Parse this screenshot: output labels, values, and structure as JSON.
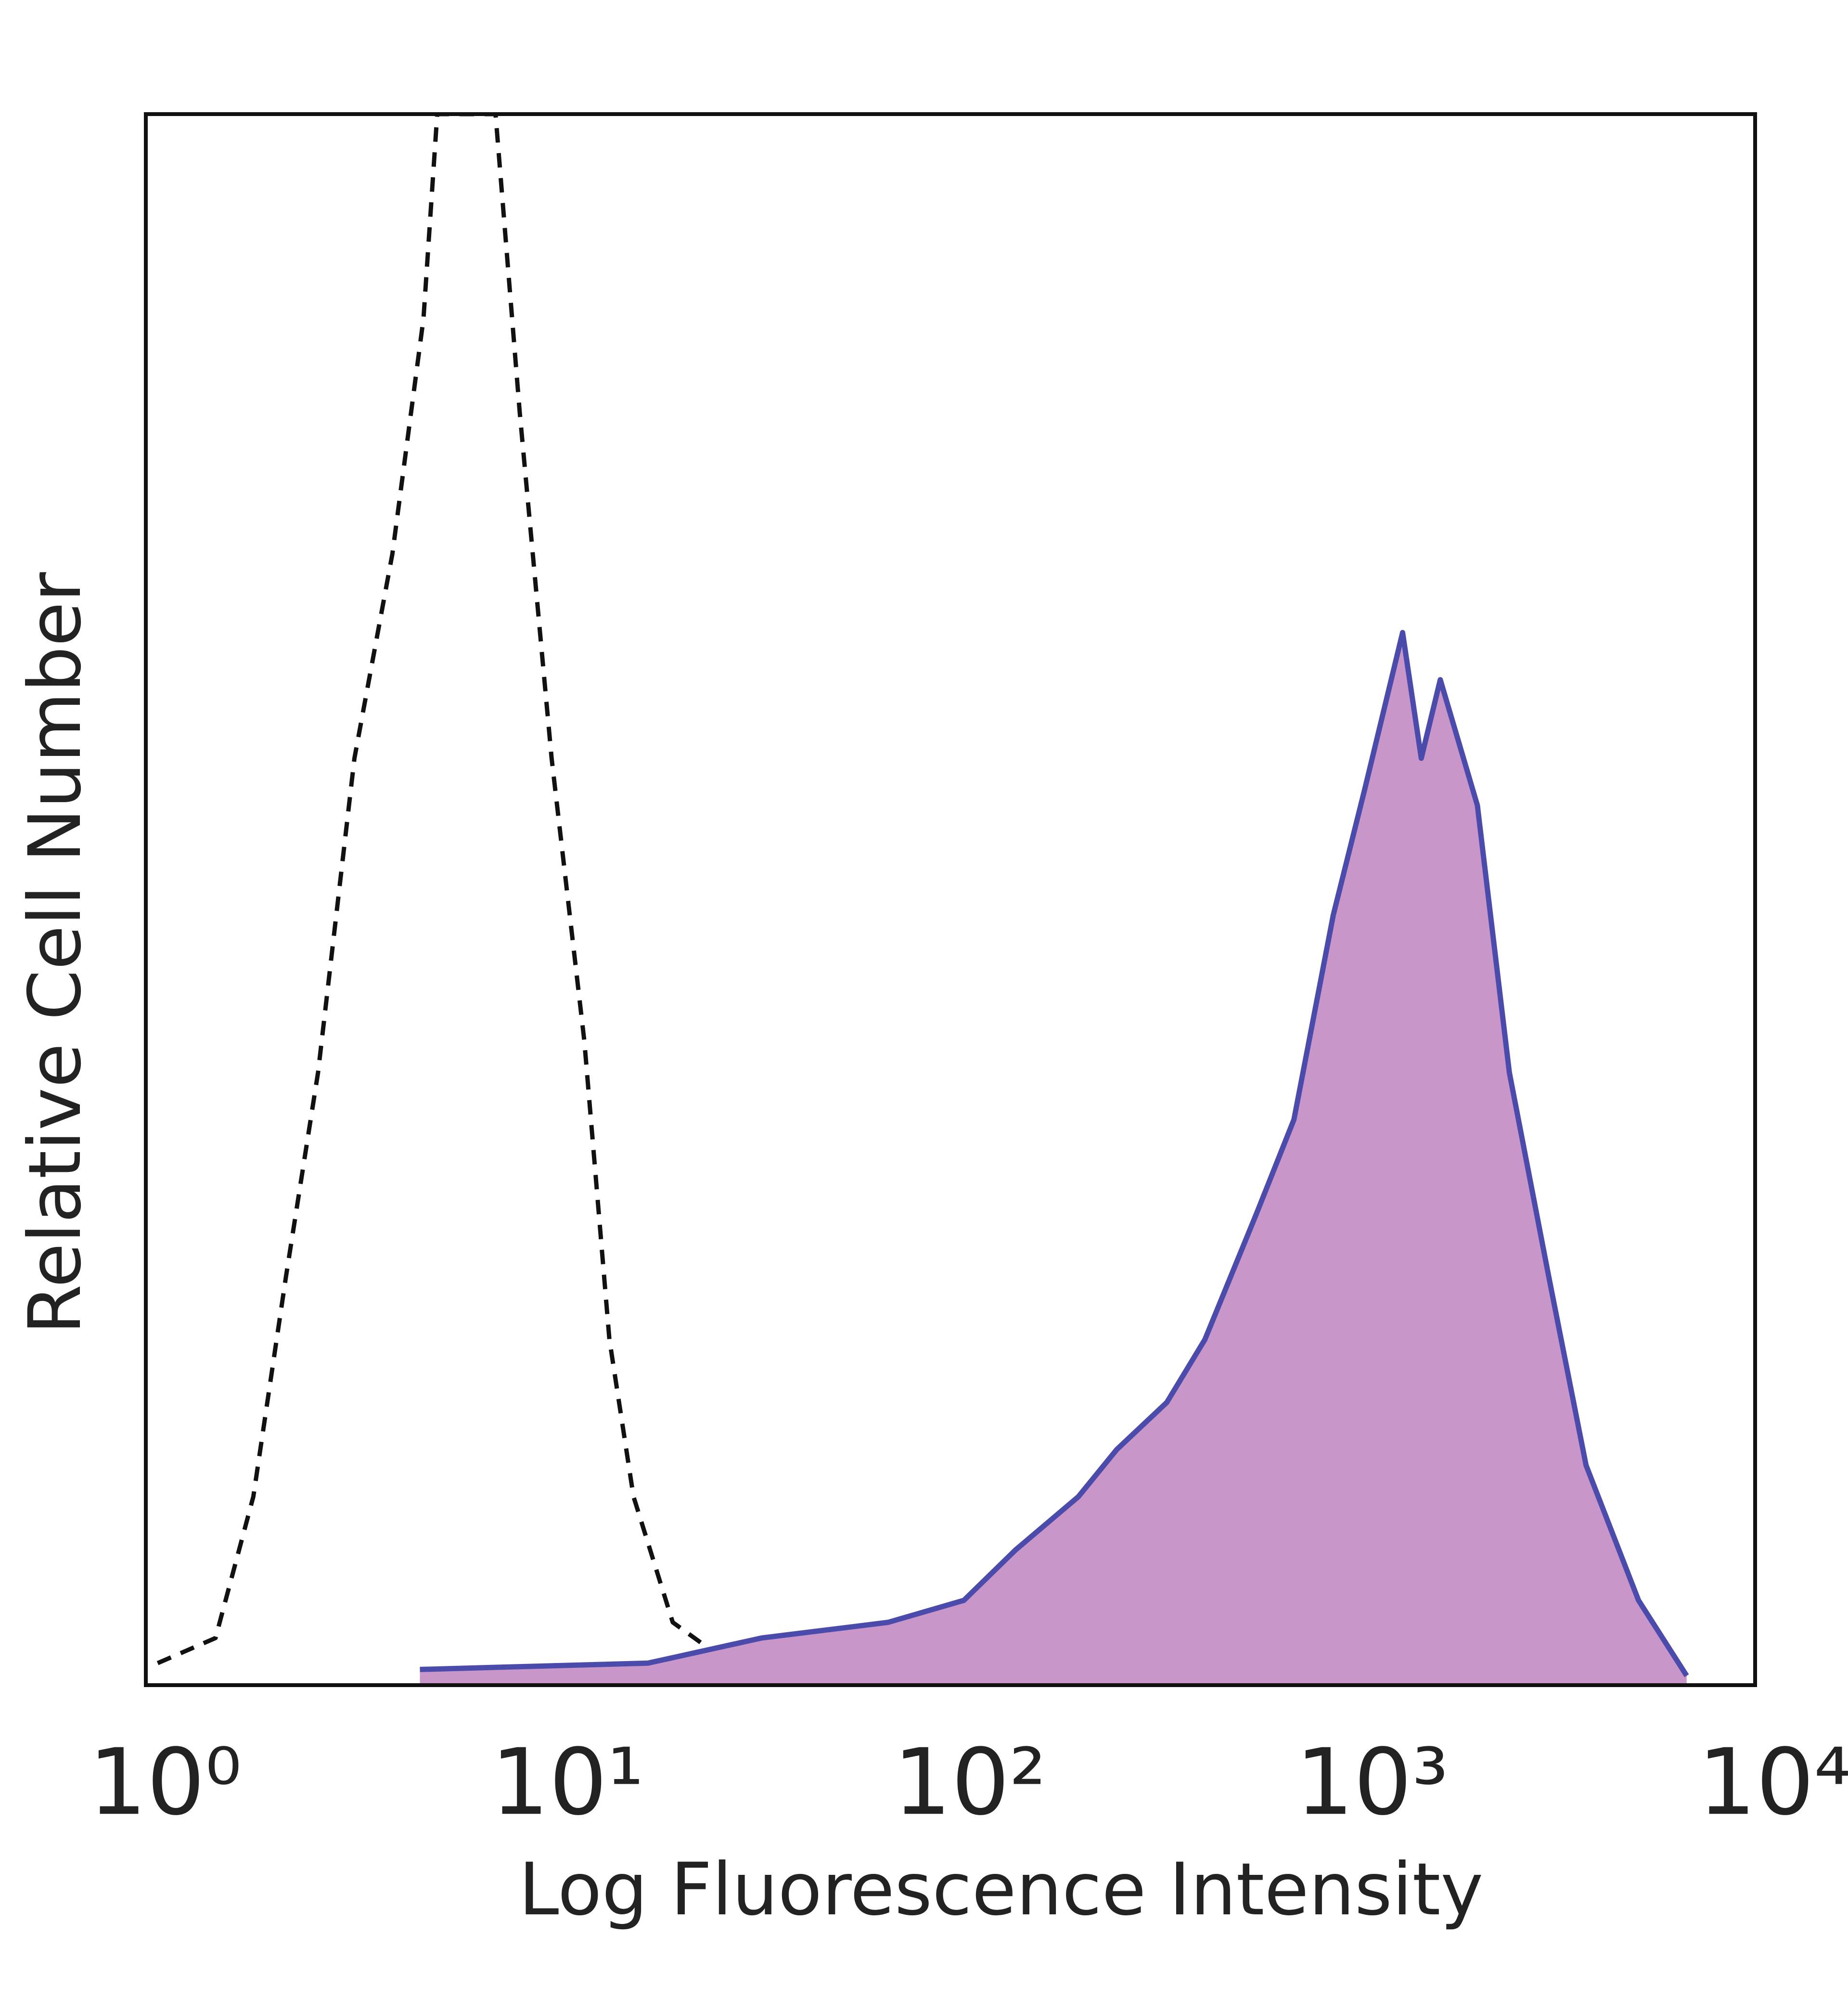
{
  "chart_data": {
    "type": "histogram-overlay",
    "x_label": "Log Fluorescence Intensity",
    "y_label": "Relative Cell Number",
    "xlim": [
      1,
      10000
    ],
    "xlog": true,
    "xticks": [
      {
        "value": 1,
        "label": "10⁰"
      },
      {
        "value": 10,
        "label": "10¹"
      },
      {
        "value": 100,
        "label": "10²"
      },
      {
        "value": 1000,
        "label": "10³"
      },
      {
        "value": 10000,
        "label": "10⁴"
      }
    ],
    "ylim": [
      0,
      100
    ],
    "series": [
      {
        "color": "#111111",
        "dashed": true,
        "x": [
          1.07,
          1.49,
          1.85,
          2.23,
          2.68,
          3.3,
          4.1,
          4.9,
          5.3,
          7.4,
          8.5,
          10.2,
          12.3,
          14.2,
          16.3,
          20.4,
          28.2
        ],
        "values": [
          1.4,
          3,
          12,
          26,
          39,
          59,
          72,
          87,
          100,
          100,
          81,
          59,
          41,
          22,
          12,
          4,
          1.4
        ]
      },
      {
        "color": "#4b4bab",
        "fill": "#c896c8",
        "x": [
          4.8,
          17.7,
          33.9,
          70,
          108,
          145,
          208,
          259,
          345,
          429,
          576,
          714,
          894,
          1070,
          1330,
          1480,
          1650,
          2040,
          2450,
          3070,
          3800,
          5130,
          6760
        ],
        "values": [
          1,
          1.4,
          3,
          4,
          5.4,
          8.6,
          12,
          15,
          18,
          22,
          30,
          36,
          49,
          57,
          67,
          59,
          64,
          56,
          39,
          26,
          14,
          5.4,
          0.6
        ]
      }
    ]
  }
}
